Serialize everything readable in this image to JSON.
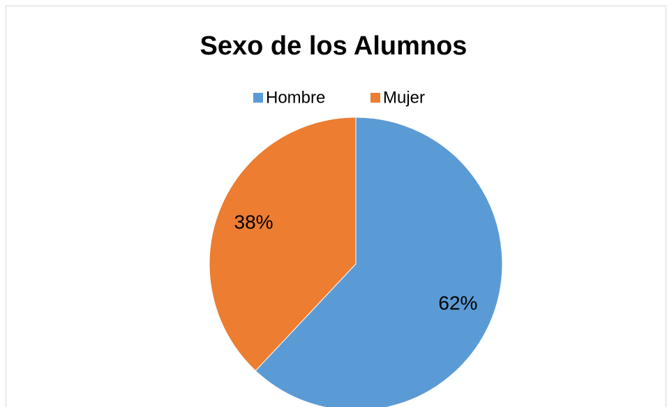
{
  "chart_data": {
    "type": "pie",
    "title": "Sexo de los Alumnos",
    "categories": [
      "Hombre",
      "Mujer"
    ],
    "values": [
      62,
      38
    ],
    "value_labels": [
      "62%",
      "38%"
    ],
    "colors": [
      "#5b9bd5",
      "#ed7d31"
    ],
    "legend": "top"
  }
}
